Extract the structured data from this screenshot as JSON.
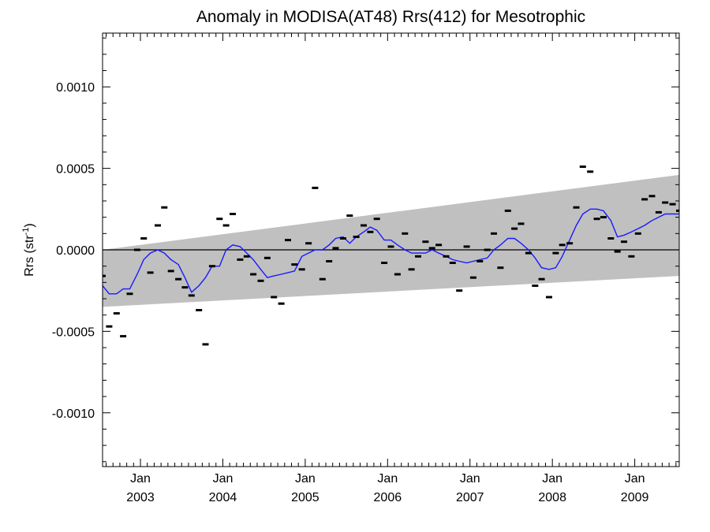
{
  "chart_data": {
    "type": "scatter",
    "title": "Anomaly in MODISA(AT48) Rrs(412) for Mesotrophic",
    "ylabel": "Rrs (str",
    "ylabel_superscript": "-1",
    "ylabel_suffix": ")",
    "xlabel": "",
    "x_unit": "decimal year",
    "xlim": [
      2002.54,
      2009.54
    ],
    "ylim": [
      -0.00133,
      0.00133
    ],
    "yticks": [
      {
        "value": 0.001,
        "label": "0.0010"
      },
      {
        "value": 0.0005,
        "label": "0.0005"
      },
      {
        "value": 0.0,
        "label": "0.0000"
      },
      {
        "value": -0.0005,
        "label": "-0.0005"
      },
      {
        "value": -0.001,
        "label": "-0.0010"
      }
    ],
    "xticks": [
      {
        "value": 2003.0,
        "month": "Jan",
        "year": "2003"
      },
      {
        "value": 2004.0,
        "month": "Jan",
        "year": "2004"
      },
      {
        "value": 2005.0,
        "month": "Jan",
        "year": "2005"
      },
      {
        "value": 2006.0,
        "month": "Jan",
        "year": "2006"
      },
      {
        "value": 2007.0,
        "month": "Jan",
        "year": "2007"
      },
      {
        "value": 2008.0,
        "month": "Jan",
        "year": "2008"
      },
      {
        "value": 2009.0,
        "month": "Jan",
        "year": "2009"
      }
    ],
    "zero_line": 0.0,
    "band": {
      "x": [
        2002.54,
        2009.54
      ],
      "upper": [
        0.0,
        0.00046
      ],
      "lower": [
        -0.00035,
        -0.00016
      ],
      "color": "#c0c0c0"
    },
    "series": [
      {
        "kind": "monthly_anomaly_markers",
        "color": "#000000",
        "x": [
          2002.54,
          2002.62,
          2002.71,
          2002.79,
          2002.87,
          2002.96,
          2003.04,
          2003.12,
          2003.21,
          2003.29,
          2003.37,
          2003.46,
          2003.54,
          2003.62,
          2003.71,
          2003.79,
          2003.87,
          2003.96,
          2004.04,
          2004.12,
          2004.21,
          2004.29,
          2004.37,
          2004.46,
          2004.54,
          2004.62,
          2004.71,
          2004.79,
          2004.87,
          2004.96,
          2005.04,
          2005.12,
          2005.21,
          2005.29,
          2005.37,
          2005.46,
          2005.54,
          2005.62,
          2005.71,
          2005.79,
          2005.87,
          2005.96,
          2006.04,
          2006.12,
          2006.21,
          2006.29,
          2006.37,
          2006.46,
          2006.54,
          2006.62,
          2006.71,
          2006.79,
          2006.87,
          2006.96,
          2007.04,
          2007.12,
          2007.21,
          2007.29,
          2007.37,
          2007.46,
          2007.54,
          2007.62,
          2007.71,
          2007.79,
          2007.87,
          2007.96,
          2008.04,
          2008.12,
          2008.21,
          2008.29,
          2008.37,
          2008.46,
          2008.54,
          2008.62,
          2008.71,
          2008.79,
          2008.87,
          2008.96,
          2009.04,
          2009.12,
          2009.21,
          2009.29,
          2009.37,
          2009.46,
          2009.54
        ],
        "values": [
          -0.00016,
          -0.00047,
          -0.00039,
          -0.00053,
          -0.00027,
          0.0,
          7e-05,
          -0.00014,
          0.00015,
          0.00026,
          -0.00013,
          -0.00018,
          -0.00023,
          -0.00028,
          -0.00037,
          -0.00058,
          -0.0001,
          0.00019,
          0.00015,
          0.00022,
          -6e-05,
          -4e-05,
          -0.00015,
          -0.00019,
          -5e-05,
          -0.00029,
          -0.00033,
          6e-05,
          -9e-05,
          -0.00012,
          4e-05,
          0.00038,
          -0.00018,
          -7e-05,
          1e-05,
          7e-05,
          0.00021,
          8e-05,
          0.00015,
          0.00011,
          0.00019,
          -8e-05,
          2e-05,
          -0.00015,
          0.0001,
          -0.00012,
          -4e-05,
          5e-05,
          1e-05,
          3e-05,
          -4e-05,
          -8e-05,
          -0.00025,
          2e-05,
          -0.00017,
          -7e-05,
          0.0,
          0.0001,
          -0.00011,
          0.00024,
          0.00013,
          0.00016,
          -2e-05,
          -0.00022,
          -0.00018,
          -0.00029,
          -2e-05,
          3e-05,
          4e-05,
          0.00026,
          0.00051,
          0.00048,
          0.00019,
          0.0002,
          7e-05,
          -1e-05,
          5e-05,
          -4e-05,
          0.0001,
          0.00031,
          0.00033,
          0.00023,
          0.00029,
          0.00028,
          0.00024
        ]
      },
      {
        "kind": "smoothed_line",
        "color": "#1a1aff",
        "x": [
          2002.54,
          2002.62,
          2002.71,
          2002.79,
          2002.87,
          2002.96,
          2003.04,
          2003.12,
          2003.21,
          2003.29,
          2003.37,
          2003.46,
          2003.54,
          2003.62,
          2003.71,
          2003.79,
          2003.87,
          2003.96,
          2004.04,
          2004.12,
          2004.21,
          2004.29,
          2004.37,
          2004.46,
          2004.54,
          2004.62,
          2004.71,
          2004.79,
          2004.87,
          2004.96,
          2005.04,
          2005.12,
          2005.21,
          2005.29,
          2005.37,
          2005.46,
          2005.54,
          2005.62,
          2005.71,
          2005.79,
          2005.87,
          2005.96,
          2006.04,
          2006.12,
          2006.21,
          2006.29,
          2006.37,
          2006.46,
          2006.54,
          2006.62,
          2006.71,
          2006.79,
          2006.87,
          2006.96,
          2007.04,
          2007.12,
          2007.21,
          2007.29,
          2007.37,
          2007.46,
          2007.54,
          2007.62,
          2007.71,
          2007.79,
          2007.87,
          2007.96,
          2008.04,
          2008.12,
          2008.21,
          2008.29,
          2008.37,
          2008.46,
          2008.54,
          2008.62,
          2008.71,
          2008.79,
          2008.87,
          2008.96,
          2009.04,
          2009.12,
          2009.21,
          2009.29,
          2009.37,
          2009.46,
          2009.54
        ],
        "values": [
          -0.00022,
          -0.00027,
          -0.00027,
          -0.00024,
          -0.00024,
          -0.00015,
          -6e-05,
          -2e-05,
          0.0,
          -2e-05,
          -6e-05,
          -9e-05,
          -0.00017,
          -0.00026,
          -0.00022,
          -0.00017,
          -0.0001,
          -0.0001,
          0.0,
          3e-05,
          2e-05,
          -2e-05,
          -6e-05,
          -0.00012,
          -0.00017,
          -0.00016,
          -0.00015,
          -0.00014,
          -0.00013,
          -4e-05,
          -2e-05,
          0.0,
          0.0,
          3e-05,
          7e-05,
          8e-05,
          4e-05,
          8e-05,
          0.00011,
          0.00014,
          0.00012,
          6e-05,
          6e-05,
          3e-05,
          0.0,
          -2e-05,
          -2e-05,
          -2e-05,
          0.0,
          -2e-05,
          -4e-05,
          -6e-05,
          -7e-05,
          -8e-05,
          -7e-05,
          -6e-05,
          -5e-05,
          0.0,
          3e-05,
          7e-05,
          7e-05,
          4e-05,
          0.0,
          -5e-05,
          -0.00011,
          -0.00012,
          -0.00011,
          -4e-05,
          6e-05,
          0.00015,
          0.00022,
          0.00025,
          0.00025,
          0.00024,
          0.00018,
          8e-05,
          9e-05,
          0.00011,
          0.00013,
          0.00015,
          0.00018,
          0.0002,
          0.00022,
          0.00022,
          0.00022
        ]
      }
    ],
    "grid": false,
    "legend": "none"
  }
}
